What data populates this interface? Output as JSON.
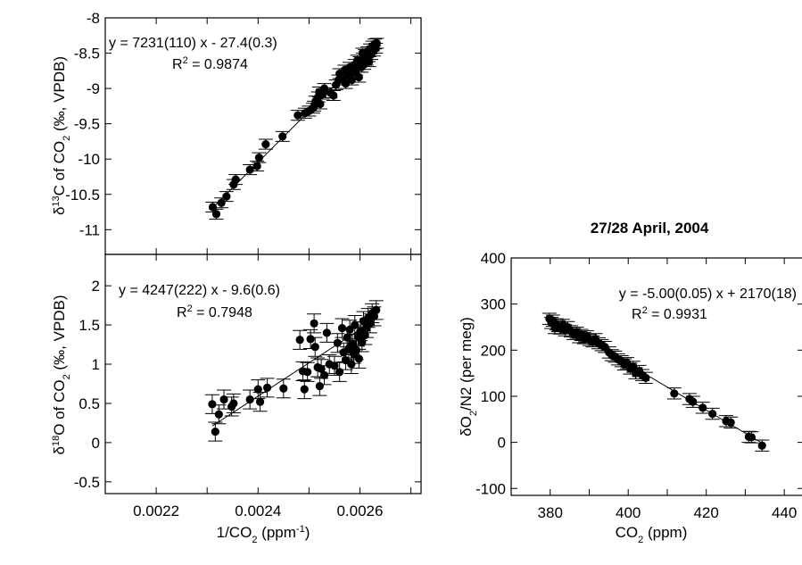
{
  "chart_data": [
    {
      "type": "scatter",
      "ylabel": "δ13C of CO2 (‰, VPDB)",
      "xlabel": "",
      "xlim": [
        0.0021,
        0.00272
      ],
      "ylim": [
        -11.35,
        -8.0
      ],
      "xticks": [
        0.0022,
        0.0024,
        0.0026
      ],
      "yticks": [
        -11,
        -10.5,
        -10,
        -9.5,
        -9,
        -8.5,
        -8
      ],
      "ytick_labels": [
        "-11",
        "-10.5",
        "-10",
        "-9.5",
        "-9",
        "-8.5",
        "-8"
      ],
      "equation": "y = 7231(110) x - 27.4(0.3)",
      "r2": "R² = 0.9874",
      "fit": {
        "slope": 7231,
        "intercept": -27.4
      },
      "error": 0.07,
      "points": [
        [
          0.002311,
          -10.68
        ],
        [
          0.002318,
          -10.78
        ],
        [
          0.002328,
          -10.62
        ],
        [
          0.002338,
          -10.53
        ],
        [
          0.002352,
          -10.36
        ],
        [
          0.002356,
          -10.29
        ],
        [
          0.002384,
          -10.15
        ],
        [
          0.002398,
          -10.1
        ],
        [
          0.002402,
          -9.98
        ],
        [
          0.002415,
          -9.79
        ],
        [
          0.002448,
          -9.68
        ],
        [
          0.002478,
          -9.38
        ],
        [
          0.002492,
          -9.35
        ],
        [
          0.0025,
          -9.32
        ],
        [
          0.002508,
          -9.28
        ],
        [
          0.00251,
          -9.25
        ],
        [
          0.002513,
          -9.18
        ],
        [
          0.002518,
          -9.12
        ],
        [
          0.00252,
          -9.05
        ],
        [
          0.002522,
          -9.22
        ],
        [
          0.002527,
          -9.08
        ],
        [
          0.00253,
          -9.0
        ],
        [
          0.002542,
          -9.06
        ],
        [
          0.002548,
          -9.1
        ],
        [
          0.002553,
          -8.95
        ],
        [
          0.002558,
          -8.88
        ],
        [
          0.00256,
          -8.79
        ],
        [
          0.002566,
          -8.86
        ],
        [
          0.00257,
          -8.74
        ],
        [
          0.002572,
          -8.93
        ],
        [
          0.002576,
          -8.82
        ],
        [
          0.00258,
          -8.7
        ],
        [
          0.002584,
          -8.88
        ],
        [
          0.002586,
          -8.78
        ],
        [
          0.00259,
          -8.66
        ],
        [
          0.002592,
          -8.74
        ],
        [
          0.002595,
          -8.6
        ],
        [
          0.002598,
          -8.84
        ],
        [
          0.0026,
          -8.62
        ],
        [
          0.002603,
          -8.7
        ],
        [
          0.002606,
          -8.57
        ],
        [
          0.002608,
          -8.66
        ],
        [
          0.00261,
          -8.52
        ],
        [
          0.002613,
          -8.6
        ],
        [
          0.002615,
          -8.48
        ],
        [
          0.002617,
          -8.55
        ],
        [
          0.00262,
          -8.44
        ],
        [
          0.002622,
          -8.52
        ],
        [
          0.002625,
          -8.4
        ],
        [
          0.002627,
          -8.47
        ],
        [
          0.002629,
          -8.37
        ],
        [
          0.002631,
          -8.43
        ],
        [
          0.002633,
          -8.36
        ],
        [
          0.002618,
          -8.62
        ],
        [
          0.002605,
          -8.5
        ]
      ]
    },
    {
      "type": "scatter",
      "ylabel": "δ18O of CO2 (‰, VPDB)",
      "xlabel": "1/CO2 (ppm-1)",
      "xlim": [
        0.0021,
        0.00272
      ],
      "ylim": [
        -0.65,
        2.4
      ],
      "xticks": [
        0.0022,
        0.0024,
        0.0026
      ],
      "xtick_labels": [
        "0.0022",
        "0.0024",
        "0.0026"
      ],
      "yticks": [
        -0.5,
        0,
        0.5,
        1,
        1.5,
        2
      ],
      "ytick_labels": [
        "-0.5",
        "0",
        "0.5",
        "1",
        "1.5",
        "2"
      ],
      "equation": "y = 4247(222) x - 9.6(0.6)",
      "r2": "R² = 0.7948",
      "fit": {
        "slope": 4247,
        "intercept": -9.6
      },
      "error": 0.12,
      "points": [
        [
          0.00231,
          0.49
        ],
        [
          0.002316,
          0.14
        ],
        [
          0.002323,
          0.36
        ],
        [
          0.002333,
          0.55
        ],
        [
          0.002348,
          0.46
        ],
        [
          0.002352,
          0.5
        ],
        [
          0.002384,
          0.55
        ],
        [
          0.0024,
          0.68
        ],
        [
          0.002404,
          0.52
        ],
        [
          0.002418,
          0.7
        ],
        [
          0.00245,
          0.69
        ],
        [
          0.002482,
          1.31
        ],
        [
          0.002488,
          0.91
        ],
        [
          0.002491,
          0.68
        ],
        [
          0.002497,
          0.9
        ],
        [
          0.002503,
          1.32
        ],
        [
          0.00251,
          1.52
        ],
        [
          0.002512,
          1.22
        ],
        [
          0.002517,
          0.96
        ],
        [
          0.002521,
          0.72
        ],
        [
          0.002524,
          0.94
        ],
        [
          0.00253,
          0.86
        ],
        [
          0.002535,
          1.4
        ],
        [
          0.00254,
          1.0
        ],
        [
          0.00255,
          0.98
        ],
        [
          0.002556,
          1.27
        ],
        [
          0.00256,
          0.9
        ],
        [
          0.002565,
          1.46
        ],
        [
          0.002568,
          1.15
        ],
        [
          0.002572,
          1.05
        ],
        [
          0.002575,
          1.34
        ],
        [
          0.002578,
          1.2
        ],
        [
          0.00258,
          1.44
        ],
        [
          0.002583,
          1.0
        ],
        [
          0.002585,
          1.26
        ],
        [
          0.002588,
          1.13
        ],
        [
          0.00259,
          1.5
        ],
        [
          0.002593,
          1.18
        ],
        [
          0.002596,
          1.35
        ],
        [
          0.002598,
          1.07
        ],
        [
          0.002601,
          1.42
        ],
        [
          0.002604,
          1.28
        ],
        [
          0.002607,
          1.55
        ],
        [
          0.00261,
          1.37
        ],
        [
          0.002613,
          1.46
        ],
        [
          0.002616,
          1.59
        ],
        [
          0.00262,
          1.52
        ],
        [
          0.002624,
          1.65
        ],
        [
          0.002628,
          1.61
        ],
        [
          0.002632,
          1.69
        ]
      ]
    },
    {
      "type": "scatter",
      "title": "27/28 April, 2004",
      "ylabel": "δO2/N2 (per meg)",
      "xlabel": "CO2 (ppm)",
      "xlim": [
        370,
        445
      ],
      "ylim": [
        -115,
        400
      ],
      "xticks": [
        380,
        400,
        420,
        440
      ],
      "xtick_labels": [
        "380",
        "400",
        "420",
        "440"
      ],
      "yticks": [
        -100,
        0,
        100,
        200,
        300,
        400
      ],
      "ytick_labels": [
        "-100",
        "0",
        "100",
        "200",
        "300",
        "400"
      ],
      "equation": "y = -5.00(0.05) x + 2170(18)",
      "r2": "R² = 0.9931",
      "fit": {
        "slope": -5.0,
        "intercept": 2170
      },
      "error": 12,
      "points": [
        [
          379.8,
          268
        ],
        [
          380.3,
          259
        ],
        [
          380.7,
          264
        ],
        [
          381.2,
          248
        ],
        [
          381.6,
          256
        ],
        [
          382.1,
          252
        ],
        [
          382.6,
          247
        ],
        [
          383.2,
          255
        ],
        [
          383.8,
          243
        ],
        [
          384.5,
          250
        ],
        [
          385.3,
          241
        ],
        [
          386.0,
          235
        ],
        [
          386.8,
          238
        ],
        [
          387.4,
          228
        ],
        [
          388.0,
          233
        ],
        [
          388.7,
          226
        ],
        [
          389.4,
          230
        ],
        [
          390.1,
          222
        ],
        [
          390.9,
          219
        ],
        [
          391.6,
          224
        ],
        [
          392.4,
          215
        ],
        [
          393.2,
          211
        ],
        [
          394.0,
          207
        ],
        [
          395.1,
          195
        ],
        [
          395.8,
          189
        ],
        [
          396.6,
          186
        ],
        [
          397.4,
          180
        ],
        [
          398.3,
          176
        ],
        [
          399.0,
          169
        ],
        [
          399.7,
          172
        ],
        [
          400.5,
          160
        ],
        [
          401.3,
          164
        ],
        [
          401.9,
          150
        ],
        [
          402.8,
          155
        ],
        [
          403.6,
          146
        ],
        [
          404.5,
          140
        ],
        [
          411.8,
          106
        ],
        [
          415.7,
          94
        ],
        [
          416.6,
          88
        ],
        [
          419.1,
          75
        ],
        [
          421.6,
          62
        ],
        [
          425.1,
          46
        ],
        [
          426.3,
          43
        ],
        [
          430.9,
          12
        ],
        [
          431.6,
          11
        ],
        [
          434.3,
          -7
        ]
      ]
    }
  ]
}
